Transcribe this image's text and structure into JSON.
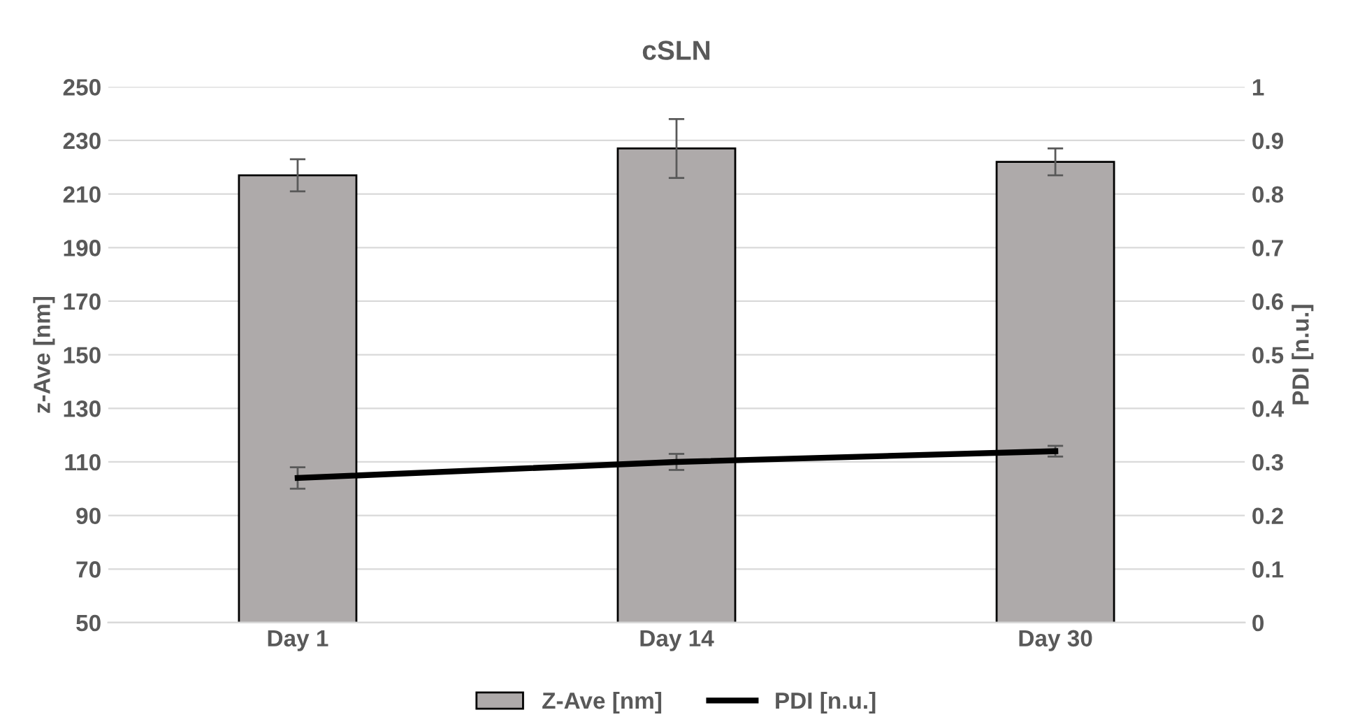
{
  "chart_data": {
    "type": "bar",
    "title": "cSLN",
    "ylabel": "z-Ave [nm]",
    "y2label": "PDI [n.u.]",
    "categories": [
      "Day 1",
      "Day 14",
      "Day 30"
    ],
    "series": [
      {
        "name": "Z-Ave [nm]",
        "color": "#aeaaaa",
        "values": [
          217,
          227,
          222
        ],
        "errors": [
          6,
          11,
          5
        ]
      },
      {
        "name": "PDI [n.u.]",
        "type": "line",
        "axis": "y2",
        "color": "#000000",
        "values": [
          0.27,
          0.3,
          0.32
        ],
        "errors": [
          0.02,
          0.015,
          0.01
        ]
      }
    ],
    "ylim": [
      50,
      250
    ],
    "yticks": [
      50,
      70,
      90,
      110,
      130,
      150,
      170,
      190,
      210,
      230,
      250
    ],
    "y2lim": [
      0,
      1
    ],
    "y2ticks": [
      0,
      0.1,
      0.2,
      0.3,
      0.4,
      0.5,
      0.6,
      0.7,
      0.8,
      0.9,
      1
    ],
    "grid": "y",
    "legend": "bottom",
    "marker": "none",
    "line_style": "solid"
  }
}
